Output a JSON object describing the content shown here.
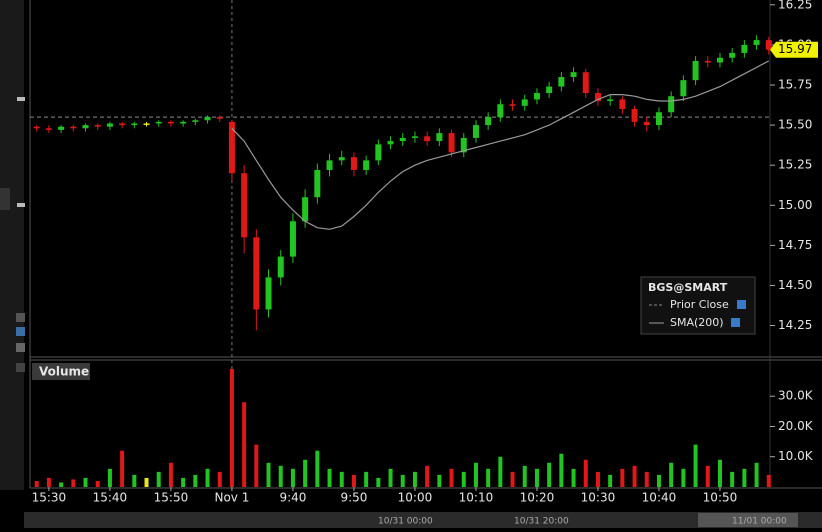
{
  "chart_data": [
    {
      "type": "candlestick",
      "title": "BGS@SMART",
      "x": [
        -2,
        0,
        2,
        4,
        6,
        8,
        10,
        12,
        14,
        16,
        18,
        20,
        22,
        24,
        26,
        28,
        30,
        32,
        34,
        36,
        38,
        40,
        42,
        44,
        46,
        48,
        50,
        52,
        54,
        56,
        58,
        60,
        62,
        64,
        66,
        68,
        70,
        72,
        74,
        76,
        78,
        80,
        82,
        84,
        86,
        88,
        90,
        92,
        94,
        96,
        98,
        100,
        102,
        104,
        106,
        108,
        110,
        112,
        114,
        116,
        118
      ],
      "open": [
        15.49,
        15.48,
        15.47,
        15.49,
        15.48,
        15.5,
        15.49,
        15.51,
        15.5,
        15.51,
        15.51,
        15.52,
        15.51,
        15.52,
        15.53,
        15.55,
        15.52,
        15.2,
        14.8,
        14.35,
        14.55,
        14.68,
        14.9,
        15.05,
        15.22,
        15.28,
        15.3,
        15.22,
        15.28,
        15.38,
        15.4,
        15.42,
        15.43,
        15.4,
        15.45,
        15.33,
        15.42,
        15.5,
        15.55,
        15.63,
        15.62,
        15.66,
        15.7,
        15.74,
        15.8,
        15.83,
        15.7,
        15.65,
        15.66,
        15.6,
        15.52,
        15.5,
        15.58,
        15.68,
        15.78,
        15.9,
        15.89,
        15.92,
        15.95,
        16.0,
        16.03
      ],
      "high": [
        15.5,
        15.5,
        15.5,
        15.5,
        15.51,
        15.51,
        15.52,
        15.52,
        15.52,
        15.52,
        15.53,
        15.53,
        15.53,
        15.54,
        15.56,
        15.56,
        15.53,
        15.25,
        14.85,
        14.6,
        14.72,
        14.95,
        15.1,
        15.26,
        15.32,
        15.34,
        15.33,
        15.31,
        15.41,
        15.43,
        15.45,
        15.46,
        15.46,
        15.48,
        15.47,
        15.45,
        15.53,
        15.58,
        15.66,
        15.66,
        15.69,
        15.73,
        15.77,
        15.83,
        15.86,
        15.85,
        15.73,
        15.69,
        15.68,
        15.62,
        15.55,
        15.61,
        15.71,
        15.81,
        15.93,
        15.93,
        15.95,
        15.98,
        16.03,
        16.06,
        16.05
      ],
      "low": [
        15.46,
        15.45,
        15.45,
        15.46,
        15.46,
        15.47,
        15.47,
        15.48,
        15.48,
        15.49,
        15.49,
        15.49,
        15.49,
        15.5,
        15.51,
        15.52,
        15.15,
        14.7,
        14.22,
        14.3,
        14.5,
        14.64,
        14.86,
        15.01,
        15.18,
        15.25,
        15.18,
        15.19,
        15.25,
        15.35,
        15.37,
        15.39,
        15.37,
        15.37,
        15.3,
        15.3,
        15.39,
        15.47,
        15.52,
        15.59,
        15.59,
        15.63,
        15.67,
        15.71,
        15.77,
        15.67,
        15.62,
        15.62,
        15.57,
        15.49,
        15.46,
        15.47,
        15.55,
        15.65,
        15.75,
        15.86,
        15.86,
        15.89,
        15.92,
        15.97,
        15.94
      ],
      "close": [
        15.48,
        15.47,
        15.49,
        15.48,
        15.5,
        15.49,
        15.51,
        15.5,
        15.51,
        15.51,
        15.52,
        15.51,
        15.52,
        15.53,
        15.55,
        15.54,
        15.2,
        14.8,
        14.35,
        14.55,
        14.68,
        14.9,
        15.05,
        15.22,
        15.28,
        15.3,
        15.22,
        15.28,
        15.38,
        15.4,
        15.42,
        15.43,
        15.4,
        15.45,
        15.33,
        15.42,
        15.5,
        15.55,
        15.63,
        15.62,
        15.66,
        15.7,
        15.74,
        15.8,
        15.83,
        15.7,
        15.65,
        15.66,
        15.6,
        15.52,
        15.5,
        15.58,
        15.68,
        15.78,
        15.9,
        15.89,
        15.92,
        15.95,
        16.0,
        16.03,
        15.97
      ],
      "up_color": "#22c422",
      "down_color": "#e01818",
      "flat_color": "#e8e81a",
      "sma": {
        "name": "SMA(200)",
        "color": "#9a9a9a",
        "values": [
          null,
          null,
          null,
          null,
          null,
          null,
          null,
          null,
          null,
          null,
          null,
          null,
          null,
          null,
          null,
          null,
          15.48,
          15.4,
          15.28,
          15.16,
          15.05,
          14.97,
          14.9,
          14.86,
          14.85,
          14.87,
          14.93,
          15.0,
          15.08,
          15.15,
          15.21,
          15.25,
          15.28,
          15.3,
          15.32,
          15.34,
          15.36,
          15.38,
          15.4,
          15.42,
          15.44,
          15.47,
          15.5,
          15.54,
          15.58,
          15.62,
          15.66,
          15.69,
          15.69,
          15.68,
          15.66,
          15.65,
          15.65,
          15.66,
          15.68,
          15.71,
          15.74,
          15.78,
          15.82,
          15.86,
          15.9
        ]
      },
      "prior_close": {
        "name": "Prior Close",
        "value": 15.55,
        "color": "#8a8a8a"
      },
      "last_price": 15.97,
      "xlim": [
        -3.1,
        118.2
      ],
      "ylim": [
        14.06,
        16.28
      ],
      "yticks": [
        14.25,
        {
          "value": 14.5,
          "label": "14.50"
        },
        14.75,
        {
          "value": 15,
          "label": "15.00"
        },
        15.25,
        {
          "value": 15.5,
          "label": "15.50"
        },
        15.75,
        {
          "value": 16,
          "label": "16.00"
        },
        16.25
      ]
    },
    {
      "type": "bar",
      "title": "Volume",
      "values": [
        2000,
        3000,
        1500,
        2500,
        3000,
        2000,
        6000,
        12000,
        4000,
        3000,
        5000,
        8000,
        3000,
        4000,
        6000,
        5000,
        39000,
        28000,
        14000,
        8000,
        7000,
        6000,
        9000,
        12000,
        6000,
        5000,
        4000,
        5000,
        3000,
        6000,
        4000,
        5000,
        7000,
        4000,
        6000,
        5000,
        8000,
        6000,
        10000,
        5000,
        7000,
        6000,
        8000,
        11000,
        6000,
        9000,
        5000,
        4000,
        6000,
        7000,
        5000,
        4000,
        8000,
        6000,
        14000,
        7000,
        9000,
        5000,
        6000,
        8000,
        4000
      ],
      "ylim": [
        0,
        41300
      ],
      "yticks": [
        {
          "value": 10000,
          "label": "10.0K"
        },
        {
          "value": 20000,
          "label": "20.0K"
        },
        {
          "value": 30000,
          "label": "30.0K"
        }
      ],
      "xticks": [
        {
          "value": 0,
          "label": "15:30"
        },
        {
          "value": 10,
          "label": "15:40"
        },
        {
          "value": 20,
          "label": "15:50"
        },
        {
          "value": 30,
          "label": "Nov 1"
        },
        {
          "value": 40,
          "label": "9:40"
        },
        {
          "value": 50,
          "label": "9:50"
        },
        {
          "value": 60,
          "label": "10:00"
        },
        {
          "value": 70,
          "label": "10:10"
        },
        {
          "value": 80,
          "label": "10:20"
        },
        {
          "value": 90,
          "label": "10:30"
        },
        {
          "value": 100,
          "label": "10:40"
        },
        {
          "value": 110,
          "label": "10:50"
        }
      ]
    }
  ],
  "scrollbar": {
    "labels": [
      "10/31 00:00",
      "10/31 20:00",
      "11/01 00:00"
    ]
  }
}
